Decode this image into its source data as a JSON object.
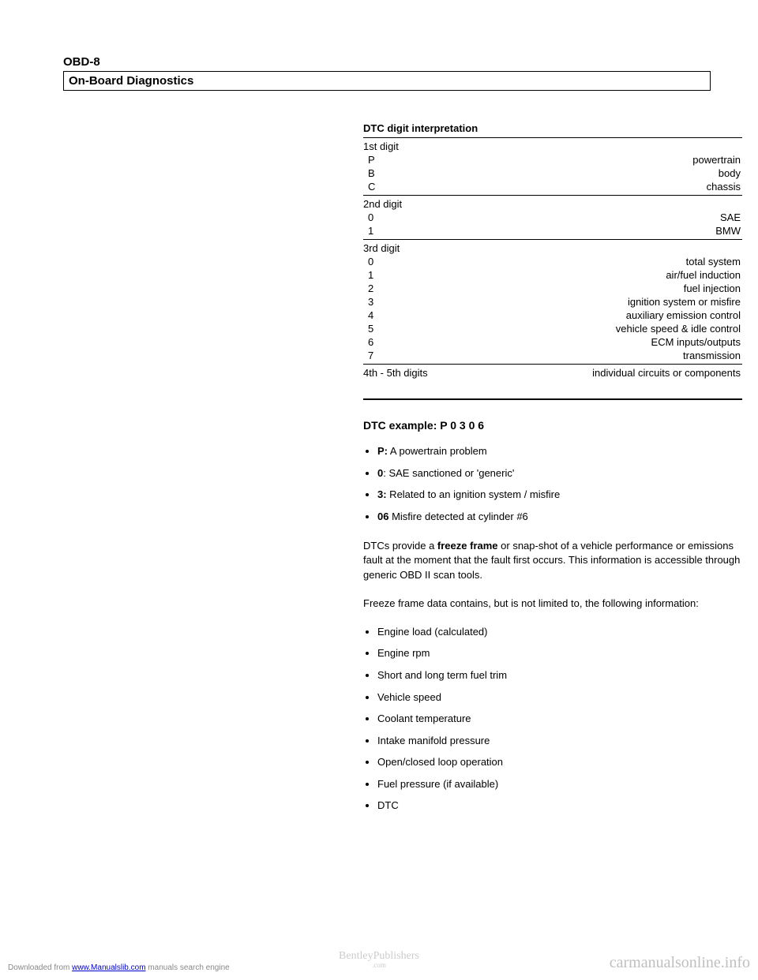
{
  "header": {
    "pageLabel": "OBD-8",
    "sectionTitle": "On-Board Diagnostics"
  },
  "dtcTable": {
    "title": "DTC digit interpretation",
    "groups": [
      {
        "header": "1st digit",
        "rows": [
          {
            "code": "P",
            "meaning": "powertrain"
          },
          {
            "code": "B",
            "meaning": "body"
          },
          {
            "code": "C",
            "meaning": "chassis"
          }
        ]
      },
      {
        "header": "2nd digit",
        "rows": [
          {
            "code": "0",
            "meaning": "SAE"
          },
          {
            "code": "1",
            "meaning": "BMW"
          }
        ]
      },
      {
        "header": "3rd digit",
        "rows": [
          {
            "code": "0",
            "meaning": "total system"
          },
          {
            "code": "1",
            "meaning": "air/fuel induction"
          },
          {
            "code": "2",
            "meaning": "fuel injection"
          },
          {
            "code": "3",
            "meaning": "ignition system or misfire"
          },
          {
            "code": "4",
            "meaning": "auxiliary emission control"
          },
          {
            "code": "5",
            "meaning": "vehicle speed & idle control"
          },
          {
            "code": "6",
            "meaning": "ECM inputs/outputs"
          },
          {
            "code": "7",
            "meaning": "transmission"
          }
        ]
      },
      {
        "header": "4th - 5th digits",
        "headerRight": "individual circuits or components",
        "rows": []
      }
    ]
  },
  "example": {
    "heading": "DTC example: P 0 3 0 6",
    "items": [
      {
        "bold": "P:",
        "text": " A powertrain problem"
      },
      {
        "bold": "0",
        "text": ": SAE sanctioned or 'generic'"
      },
      {
        "bold": "3:",
        "text": " Related to an ignition system / misfire"
      },
      {
        "bold": "06",
        "text": " Misfire detected at cylinder #6"
      }
    ]
  },
  "para1_a": "DTCs provide a ",
  "para1_bold": "freeze frame",
  "para1_b": " or snap-shot of a vehicle performance or emissions fault at the moment that the fault first occurs. This information is accessible through generic OBD II scan tools.",
  "para2": "Freeze frame data contains, but is not limited to, the following information:",
  "infoList": [
    "Engine load (calculated)",
    "Engine rpm",
    "Short and long term fuel trim",
    "Vehicle speed",
    "Coolant temperature",
    "Intake manifold pressure",
    "Open/closed loop operation",
    "Fuel pressure (if available)",
    "DTC"
  ],
  "footer": {
    "left_a": "Downloaded from ",
    "left_link": "www.Manualslib.com",
    "left_b": " manuals search engine",
    "center_main": "BentleyPublishers",
    "center_sub": ".com",
    "right": "carmanualsonline.info"
  }
}
